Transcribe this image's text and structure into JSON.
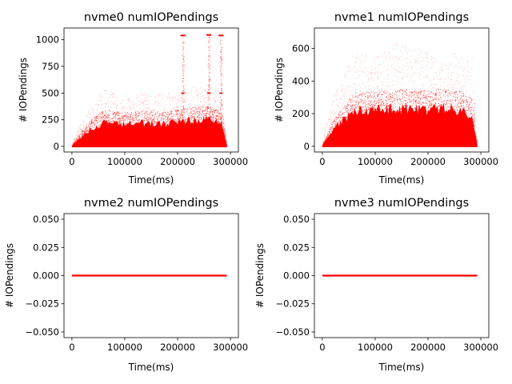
{
  "chart_data": [
    {
      "type": "scatter",
      "title": "nvme0 numIOPendings",
      "xlabel": "Time(ms)",
      "ylabel": "# IOPendings",
      "xlim": [
        -15000,
        315000
      ],
      "ylim": [
        -52,
        1110
      ],
      "xticks": [
        0,
        100000,
        200000,
        300000
      ],
      "xtick_labels": [
        "0",
        "100000",
        "200000",
        "300000"
      ],
      "yticks": [
        0,
        250,
        500,
        750,
        1000
      ],
      "ytick_labels": [
        "0",
        "250",
        "500",
        "750",
        "1000"
      ],
      "grid": false,
      "series": [
        {
          "color": "#ff0000",
          "x_range": [
            0,
            293000
          ],
          "dense_band": [
            [
              0,
              5
            ],
            [
              20000,
              120
            ],
            [
              40000,
              210
            ],
            [
              60000,
              260
            ],
            [
              100000,
              250
            ],
            [
              140000,
              260
            ],
            [
              180000,
              250
            ],
            [
              220000,
              280
            ],
            [
              260000,
              290
            ],
            [
              285000,
              240
            ],
            [
              293000,
              0
            ]
          ],
          "sparse_band": [
            [
              0,
              30
            ],
            [
              20000,
              250
            ],
            [
              60000,
              550
            ],
            [
              100000,
              450
            ],
            [
              140000,
              500
            ],
            [
              180000,
              500
            ],
            [
              220000,
              560
            ],
            [
              260000,
              560
            ],
            [
              285000,
              550
            ],
            [
              293000,
              0
            ]
          ],
          "spikes": [
            {
              "x": 210000,
              "y": 1040
            },
            {
              "x": 259000,
              "y": 1045
            },
            {
              "x": 282000,
              "y": 1040
            }
          ]
        }
      ]
    },
    {
      "type": "scatter",
      "title": "nvme1 numIOPendings",
      "xlabel": "Time(ms)",
      "ylabel": "# IOPendings",
      "xlim": [
        -15000,
        315000
      ],
      "ylim": [
        -35,
        725
      ],
      "xticks": [
        0,
        100000,
        200000,
        300000
      ],
      "xtick_labels": [
        "0",
        "100000",
        "200000",
        "300000"
      ],
      "yticks": [
        0,
        200,
        400,
        600
      ],
      "ytick_labels": [
        "0",
        "200",
        "400",
        "600"
      ],
      "grid": false,
      "series": [
        {
          "color": "#ff0000",
          "x_range": [
            0,
            293000
          ],
          "dense_band": [
            [
              0,
              5
            ],
            [
              20000,
              120
            ],
            [
              40000,
              190
            ],
            [
              60000,
              250
            ],
            [
              100000,
              260
            ],
            [
              140000,
              270
            ],
            [
              180000,
              260
            ],
            [
              220000,
              270
            ],
            [
              260000,
              260
            ],
            [
              285000,
              220
            ],
            [
              293000,
              0
            ]
          ],
          "sparse_band": [
            [
              0,
              30
            ],
            [
              20000,
              300
            ],
            [
              60000,
              580
            ],
            [
              100000,
              540
            ],
            [
              140000,
              640
            ],
            [
              180000,
              600
            ],
            [
              220000,
              540
            ],
            [
              260000,
              580
            ],
            [
              285000,
              560
            ],
            [
              293000,
              0
            ]
          ],
          "spikes": []
        }
      ]
    },
    {
      "type": "line",
      "title": "nvme2 numIOPendings",
      "xlabel": "Time(ms)",
      "ylabel": "# IOPendings",
      "xlim": [
        -15000,
        315000
      ],
      "ylim": [
        -0.055,
        0.055
      ],
      "xticks": [
        0,
        100000,
        200000,
        300000
      ],
      "xtick_labels": [
        "0",
        "100000",
        "200000",
        "300000"
      ],
      "yticks": [
        -0.05,
        -0.025,
        0,
        0.025,
        0.05
      ],
      "ytick_labels": [
        "−0.050",
        "−0.025",
        "0.000",
        "0.025",
        "0.050"
      ],
      "grid": false,
      "series": [
        {
          "color": "#ff0000",
          "x": [
            0,
            293000
          ],
          "y": [
            0,
            0
          ]
        }
      ]
    },
    {
      "type": "line",
      "title": "nvme3 numIOPendings",
      "xlabel": "Time(ms)",
      "ylabel": "# IOPendings",
      "xlim": [
        -15000,
        315000
      ],
      "ylim": [
        -0.055,
        0.055
      ],
      "xticks": [
        0,
        100000,
        200000,
        300000
      ],
      "xtick_labels": [
        "0",
        "100000",
        "200000",
        "300000"
      ],
      "yticks": [
        -0.05,
        -0.025,
        0,
        0.025,
        0.05
      ],
      "ytick_labels": [
        "−0.050",
        "−0.025",
        "0.000",
        "0.025",
        "0.050"
      ],
      "grid": false,
      "series": [
        {
          "color": "#ff0000",
          "x": [
            0,
            293000
          ],
          "y": [
            0,
            0
          ]
        }
      ]
    }
  ]
}
